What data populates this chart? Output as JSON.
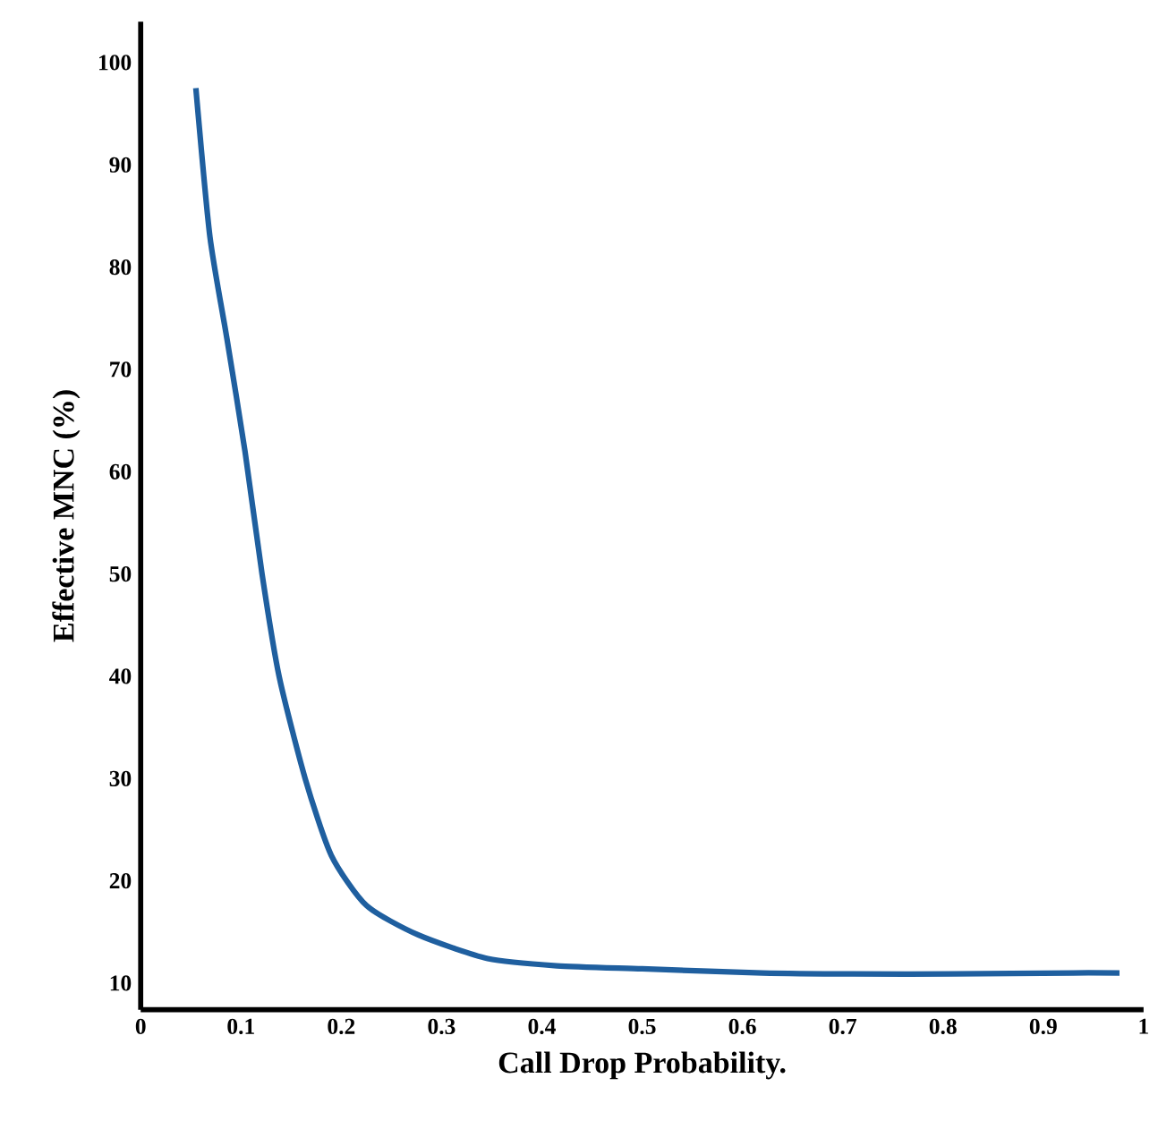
{
  "chart_data": {
    "type": "line",
    "xlabel": "Call Drop Probability.",
    "ylabel": "Effective MNC (%)",
    "x": [
      0.055,
      0.069,
      0.086,
      0.104,
      0.121,
      0.138,
      0.164,
      0.19,
      0.225,
      0.277,
      0.346,
      0.415,
      0.5,
      0.62,
      0.71,
      0.81,
      0.93,
      0.976
    ],
    "series": [
      {
        "color": "#1f5f9f",
        "values": [
          97.5,
          83,
          73,
          62,
          50,
          40,
          30,
          22.5,
          17.6,
          14.7,
          12.4,
          11.7,
          11.4,
          11.0,
          10.9,
          10.9,
          11.0,
          11.0
        ]
      }
    ],
    "xlim": [
      0,
      1
    ],
    "ylim": [
      7.4,
      104
    ],
    "xticks": [
      0,
      0.1,
      0.2,
      0.3,
      0.4,
      0.5,
      0.6,
      0.7,
      0.8,
      0.9,
      1
    ],
    "yticks": [
      10,
      20,
      30,
      40,
      50,
      60,
      70,
      80,
      90,
      100
    ],
    "grid": false,
    "marker": "none",
    "line_style": "solid"
  }
}
